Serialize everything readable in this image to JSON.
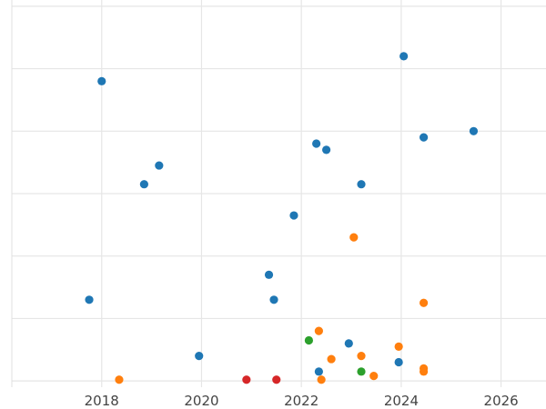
{
  "chart_data": {
    "type": "scatter",
    "title": "",
    "xlabel": "",
    "ylabel": "",
    "x_axis_type": "year",
    "xlim": [
      2016.2,
      2026.9
    ],
    "ylim": [
      -0.1,
      6.1
    ],
    "x_ticks": [
      2018,
      2020,
      2022,
      2024,
      2026
    ],
    "x_tick_labels": [
      "2018",
      "2020",
      "2022",
      "2024",
      "2026"
    ],
    "y_gridlines": [
      0,
      1,
      2,
      3,
      4,
      5,
      6
    ],
    "y_tick_labels_visible": false,
    "grid": true,
    "legend": "none",
    "colors": {
      "blue": "#1f77b4",
      "orange": "#ff7f0e",
      "green": "#2ca02c",
      "red": "#d62728",
      "grid": "#e6e6e6",
      "tick_text": "#444444"
    },
    "series": [
      {
        "color": "#1f77b4",
        "points": [
          {
            "x": 2018.0,
            "y": 4.8
          },
          {
            "x": 2024.05,
            "y": 5.2
          },
          {
            "x": 2025.45,
            "y": 4.0
          },
          {
            "x": 2022.3,
            "y": 3.8
          },
          {
            "x": 2022.5,
            "y": 3.7
          },
          {
            "x": 2024.45,
            "y": 3.9
          },
          {
            "x": 2019.15,
            "y": 3.45
          },
          {
            "x": 2018.85,
            "y": 3.15
          },
          {
            "x": 2023.2,
            "y": 3.15
          },
          {
            "x": 2021.85,
            "y": 2.65
          },
          {
            "x": 2021.35,
            "y": 1.7
          },
          {
            "x": 2017.75,
            "y": 1.3
          },
          {
            "x": 2021.45,
            "y": 1.3
          },
          {
            "x": 2022.95,
            "y": 0.6
          },
          {
            "x": 2019.95,
            "y": 0.4
          },
          {
            "x": 2023.95,
            "y": 0.3
          },
          {
            "x": 2022.35,
            "y": 0.15
          }
        ]
      },
      {
        "color": "#ff7f0e",
        "points": [
          {
            "x": 2023.05,
            "y": 2.3
          },
          {
            "x": 2024.45,
            "y": 1.25
          },
          {
            "x": 2022.35,
            "y": 0.8
          },
          {
            "x": 2023.95,
            "y": 0.55
          },
          {
            "x": 2022.6,
            "y": 0.35
          },
          {
            "x": 2023.2,
            "y": 0.4
          },
          {
            "x": 2024.45,
            "y": 0.2
          },
          {
            "x": 2024.45,
            "y": 0.15
          },
          {
            "x": 2023.45,
            "y": 0.08
          },
          {
            "x": 2018.35,
            "y": 0.02
          },
          {
            "x": 2022.4,
            "y": 0.02
          }
        ]
      },
      {
        "color": "#2ca02c",
        "points": [
          {
            "x": 2022.15,
            "y": 0.65
          },
          {
            "x": 2023.2,
            "y": 0.15
          }
        ]
      },
      {
        "color": "#d62728",
        "points": [
          {
            "x": 2020.9,
            "y": 0.02
          },
          {
            "x": 2021.5,
            "y": 0.02
          }
        ]
      }
    ]
  }
}
